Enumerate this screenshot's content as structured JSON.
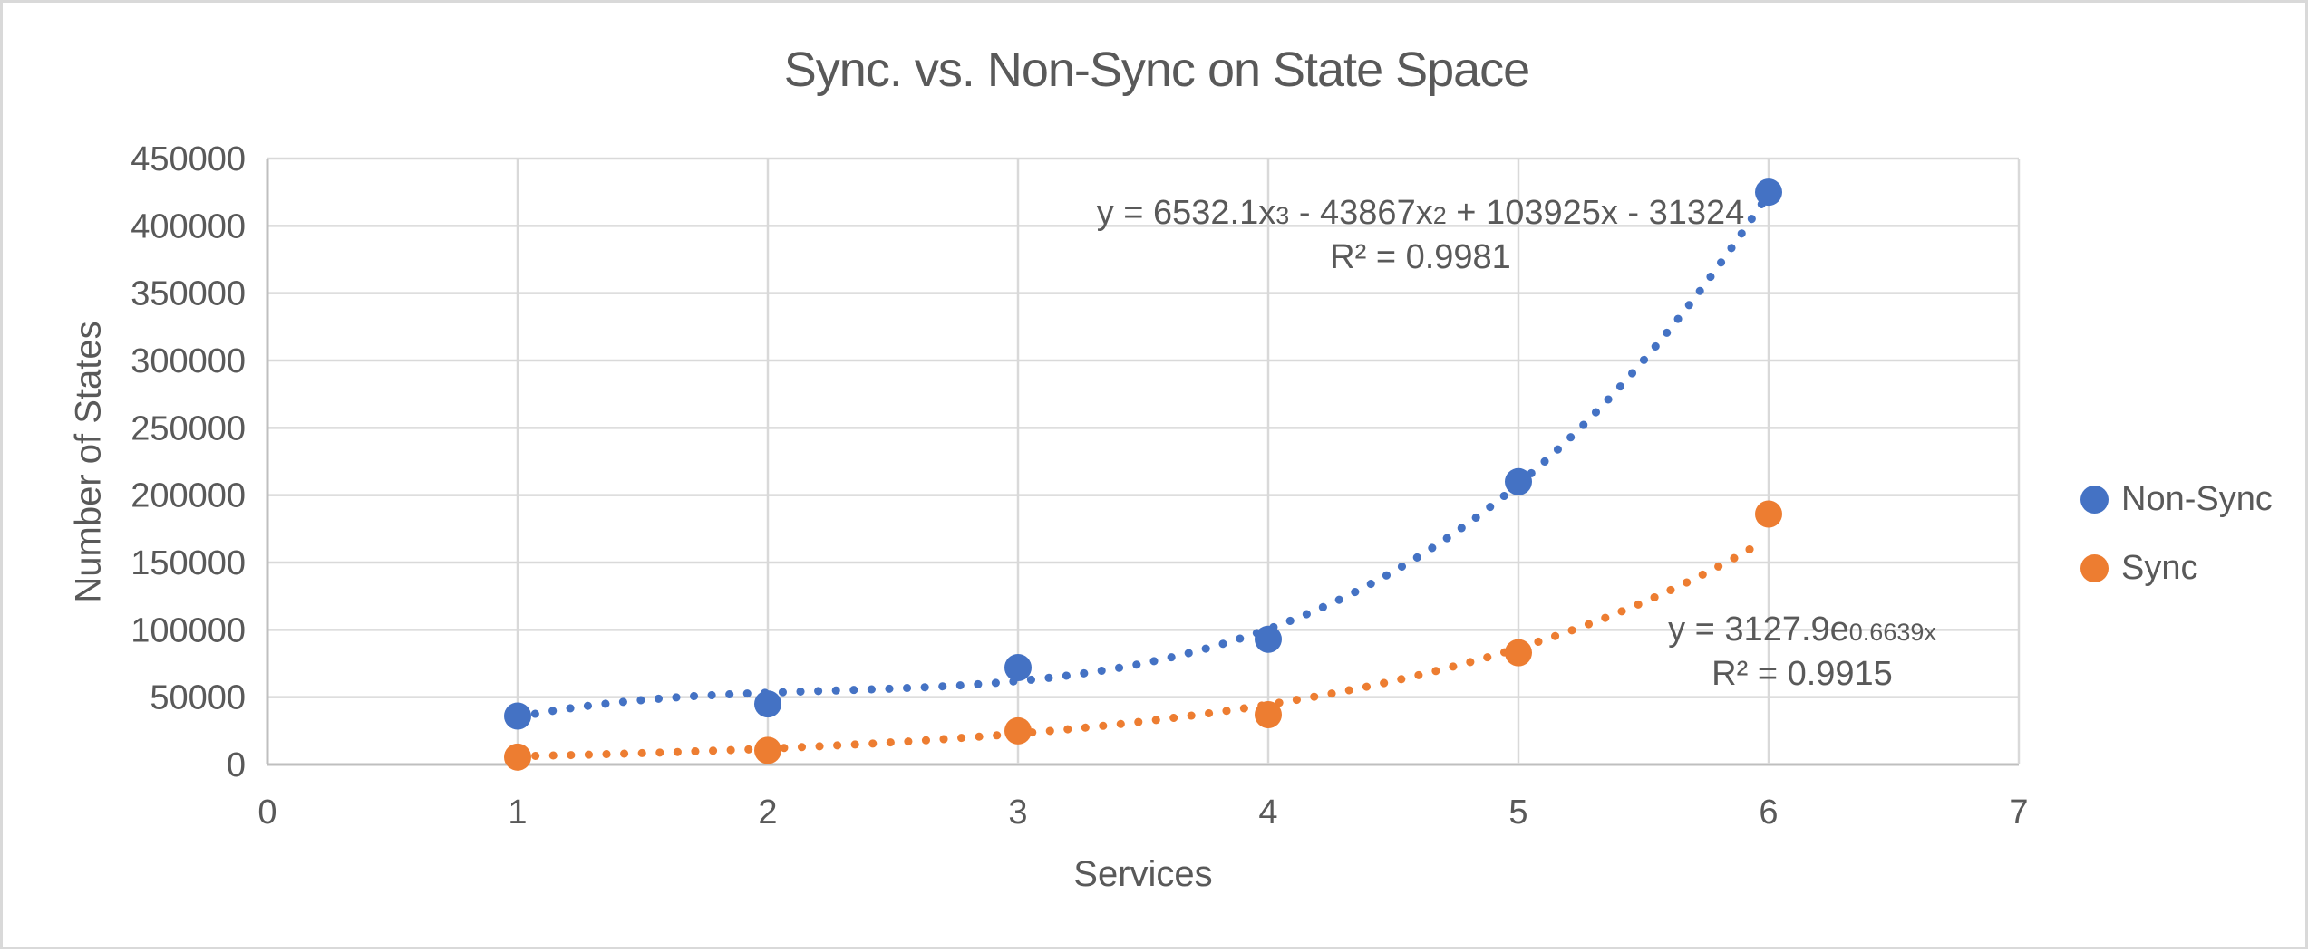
{
  "frame": {
    "background": "#FFFFFF",
    "border_color": "#D9D9D9"
  },
  "chart_data": {
    "type": "scatter",
    "title": "Sync. vs. Non-Sync on State Space",
    "xlabel": "Services",
    "ylabel": "Number of States",
    "xlim": [
      0,
      7
    ],
    "ylim": [
      0,
      450000
    ],
    "x_ticks": [
      0,
      1,
      2,
      3,
      4,
      5,
      6,
      7
    ],
    "y_ticks": [
      0,
      50000,
      100000,
      150000,
      200000,
      250000,
      300000,
      350000,
      400000,
      450000
    ],
    "grid": true,
    "legend_position": "right",
    "x": [
      1,
      2,
      3,
      4,
      5,
      6
    ],
    "series": [
      {
        "name": "Non-Sync",
        "color": "#4472C4",
        "marker": "circle",
        "values": [
          36000,
          45000,
          72000,
          93000,
          210000,
          425000
        ],
        "trendline": {
          "type": "polynomial",
          "order": 3,
          "coefficients": [
            6532.1,
            -43867,
            103925,
            -31324
          ],
          "style": "dotted",
          "range": [
            1,
            6
          ],
          "equation": "y = 6532.1x^3 - 43867x^2 + 103925x - 31324",
          "equation_segments": [
            {
              "text": "y = 6532.1x"
            },
            {
              "text": "3",
              "sup": true
            },
            {
              "text": " - 43867x"
            },
            {
              "text": "2",
              "sup": true
            },
            {
              "text": " + 103925x - 31324"
            }
          ],
          "r_squared_label": "R² = 0.9981"
        }
      },
      {
        "name": "Sync",
        "color": "#ED7D31",
        "marker": "circle",
        "values": [
          5500,
          10500,
          25000,
          37000,
          83000,
          186000
        ],
        "trendline": {
          "type": "exponential",
          "coefficients": [
            3127.9,
            0.6639
          ],
          "style": "dotted",
          "range": [
            1,
            6
          ],
          "equation": "y = 3127.9e^(0.6639x)",
          "equation_segments": [
            {
              "text": "y = 3127.9e"
            },
            {
              "text": "0.6639x",
              "sup": true
            }
          ],
          "r_squared_label": "R² = 0.9915"
        }
      }
    ],
    "colors": {
      "grid": "#D9D9D9",
      "axis_line": "#BFBFBF",
      "text": "#595959"
    }
  }
}
